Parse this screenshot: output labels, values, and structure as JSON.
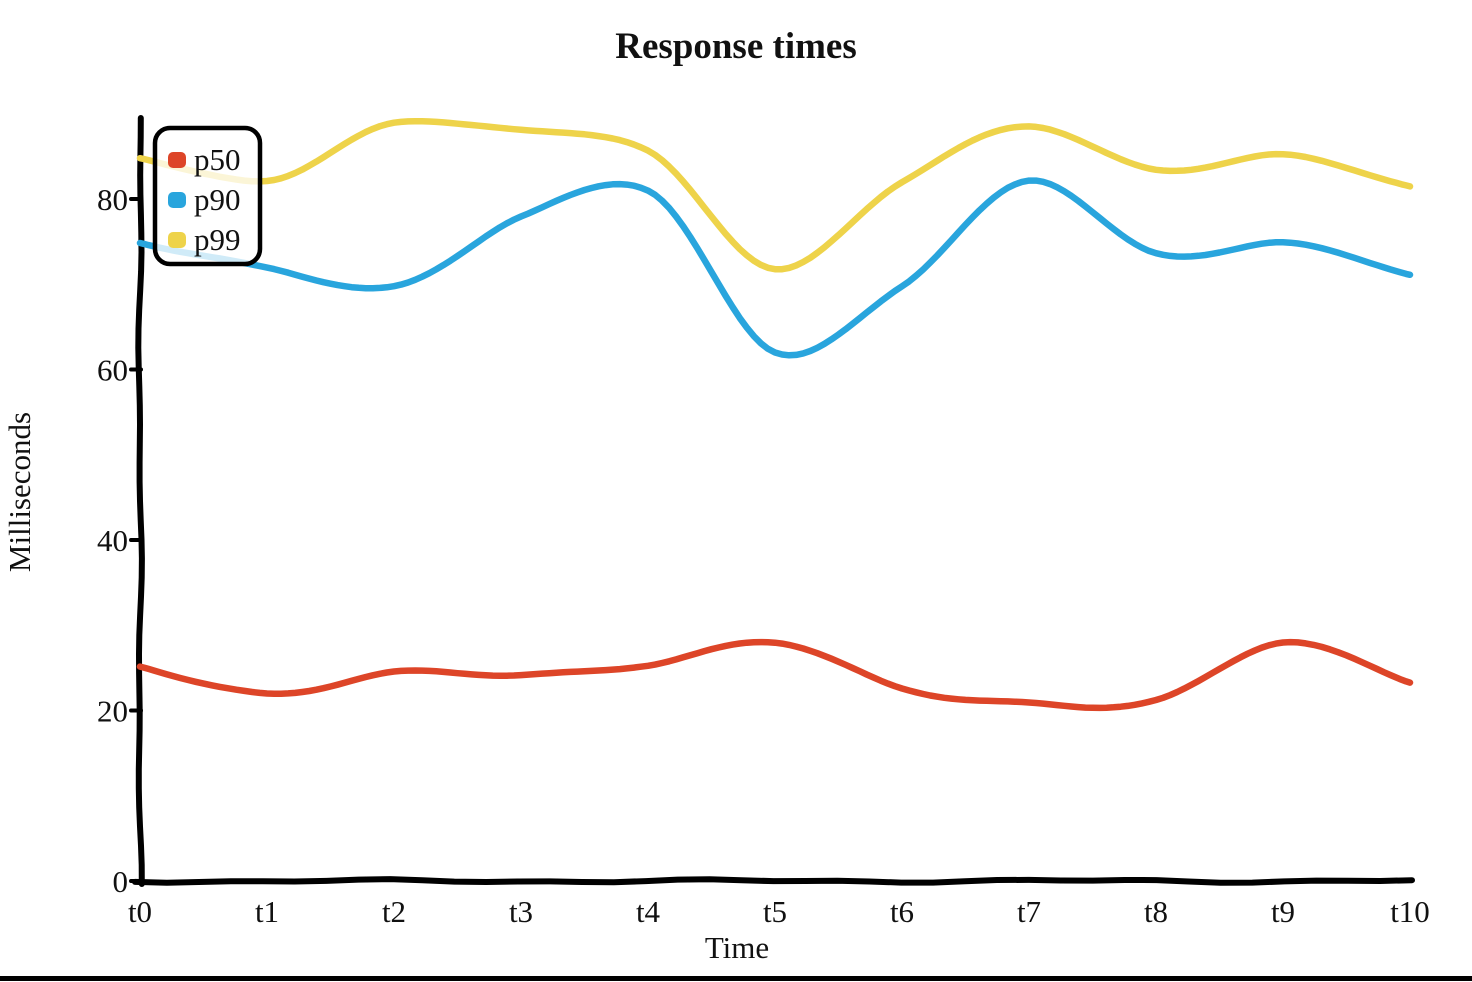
{
  "page": {
    "background": "#ffffff",
    "bottom_border_color": "#000000"
  },
  "chart_data": {
    "type": "line",
    "title": "Response times",
    "xlabel": "Time",
    "ylabel": "Milliseconds",
    "categories": [
      "t0",
      "t1",
      "t2",
      "t3",
      "t4",
      "t5",
      "t6",
      "t7",
      "t8",
      "t9",
      "t10"
    ],
    "yticks": [
      0,
      20,
      40,
      60,
      80
    ],
    "ylim": [
      0,
      90
    ],
    "grid": false,
    "style": "hand-drawn-xkcd",
    "axis_color": "#000000",
    "legend_position": "top-left",
    "legend_entries": [
      "p50",
      "p90",
      "p99"
    ],
    "series": [
      {
        "name": "p50",
        "color": "#dd4528",
        "values": [
          25,
          22,
          24.5,
          24,
          25.5,
          28,
          22.5,
          21,
          21,
          28,
          23.5
        ]
      },
      {
        "name": "p90",
        "color": "#29a5dd",
        "values": [
          75,
          72,
          69.5,
          78,
          81,
          62,
          70,
          82,
          73.5,
          75,
          71
        ]
      },
      {
        "name": "p99",
        "color": "#eed34a",
        "values": [
          85,
          82,
          89,
          88,
          85.5,
          72,
          82,
          88.5,
          83.5,
          85,
          81.5
        ]
      }
    ]
  }
}
